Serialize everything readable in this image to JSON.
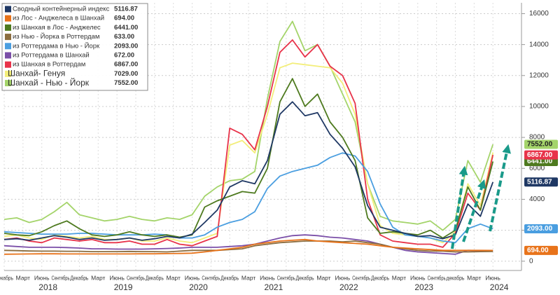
{
  "chart_data": {
    "type": "line",
    "x": [
      "2017-12",
      "2018-02",
      "2018-04",
      "2018-06",
      "2018-08",
      "2018-10",
      "2018-12",
      "2019-02",
      "2019-04",
      "2019-06",
      "2019-08",
      "2019-10",
      "2019-12",
      "2020-02",
      "2020-04",
      "2020-06",
      "2020-08",
      "2020-10",
      "2020-12",
      "2021-02",
      "2021-04",
      "2021-06",
      "2021-08",
      "2021-10",
      "2021-12",
      "2022-02",
      "2022-04",
      "2022-06",
      "2022-08",
      "2022-10",
      "2022-12",
      "2023-02",
      "2023-04",
      "2023-06",
      "2023-08",
      "2023-10",
      "2023-12",
      "2024-02",
      "2024-04",
      "2024-06"
    ],
    "xlim": [
      "2017-12",
      "2024-10"
    ],
    "xticks": [
      {
        "value": "2017-12",
        "label": "Декабрь"
      },
      {
        "value": "2018-03",
        "label": "Март"
      },
      {
        "value": "2018-06",
        "label": "Июнь"
      },
      {
        "value": "2018-09",
        "label": "Сентябрь"
      },
      {
        "value": "2018-12",
        "label": "Декабрь"
      },
      {
        "value": "2019-03",
        "label": "Март"
      },
      {
        "value": "2019-06",
        "label": "Июнь"
      },
      {
        "value": "2019-09",
        "label": "Сентябрь"
      },
      {
        "value": "2019-12",
        "label": "Декабрь"
      },
      {
        "value": "2020-03",
        "label": "Март"
      },
      {
        "value": "2020-06",
        "label": "Июнь"
      },
      {
        "value": "2020-09",
        "label": "Сентябрь"
      },
      {
        "value": "2020-12",
        "label": "Декабрь"
      },
      {
        "value": "2021-03",
        "label": "Март"
      },
      {
        "value": "2021-06",
        "label": "Июнь"
      },
      {
        "value": "2021-09",
        "label": "Сентябрь"
      },
      {
        "value": "2021-12",
        "label": "Декабрь"
      },
      {
        "value": "2022-03",
        "label": "Март"
      },
      {
        "value": "2022-06",
        "label": "Июнь"
      },
      {
        "value": "2022-09",
        "label": "Сентябрь"
      },
      {
        "value": "2022-12",
        "label": "Декабрь"
      },
      {
        "value": "2023-03",
        "label": "Март"
      },
      {
        "value": "2023-06",
        "label": "Июнь"
      },
      {
        "value": "2023-09",
        "label": "Сентябрь"
      },
      {
        "value": "2023-12",
        "label": "декабрь"
      },
      {
        "value": "2024-03",
        "label": "Март"
      },
      {
        "value": "2024-06",
        "label": "Июнь"
      }
    ],
    "year_labels": [
      {
        "value": "2018-07",
        "label": "2018"
      },
      {
        "value": "2019-07",
        "label": "2019"
      },
      {
        "value": "2020-07",
        "label": "2020"
      },
      {
        "value": "2021-07",
        "label": "2021"
      },
      {
        "value": "2022-07",
        "label": "2022"
      },
      {
        "value": "2023-07",
        "label": "2023"
      },
      {
        "value": "2024-07",
        "label": "2024"
      }
    ],
    "ylim": [
      -600,
      16700
    ],
    "yticks": [
      0,
      2000,
      4000,
      6000,
      8000,
      10000,
      12000,
      14000,
      16000
    ],
    "grid": true,
    "legend": "top-left",
    "series": [
      {
        "name": "Сводный контейнерный индекс",
        "color": "#1f3864",
        "last_value": 5116.87,
        "last_value_label": "5116.87",
        "tag": true,
        "values": [
          1400,
          1450,
          1350,
          1500,
          1650,
          1550,
          1400,
          1500,
          1350,
          1400,
          1500,
          1350,
          1450,
          1600,
          1500,
          1750,
          2500,
          3300,
          4800,
          5200,
          5000,
          6500,
          9500,
          10300,
          9400,
          9600,
          8200,
          7300,
          6100,
          3600,
          2200,
          2000,
          1800,
          1600,
          1650,
          1450,
          1700,
          3700,
          2900,
          5117
        ]
      },
      {
        "name": "из Лос - Анджелеса в Шанхай",
        "color": "#e8731a",
        "last_value": 694,
        "last_value_label": "694.00",
        "tag": true,
        "values": [
          450,
          460,
          470,
          480,
          480,
          470,
          470,
          470,
          470,
          470,
          470,
          480,
          480,
          490,
          500,
          520,
          600,
          700,
          800,
          900,
          1100,
          1200,
          1300,
          1350,
          1400,
          1300,
          1250,
          1200,
          1150,
          1100,
          1000,
          900,
          850,
          800,
          750,
          700,
          700,
          700,
          700,
          694
        ]
      },
      {
        "name": "из Шанхая в Лос - Анджелес",
        "color": "#4e7a1f",
        "last_value": 6441,
        "last_value_label": "6441.00",
        "tag": true,
        "values": [
          1800,
          1700,
          1650,
          1900,
          2300,
          2600,
          2100,
          1700,
          1600,
          1700,
          1900,
          1700,
          1600,
          1700,
          1550,
          1700,
          3500,
          3900,
          4200,
          4500,
          4400,
          6000,
          10300,
          11800,
          10000,
          10800,
          9000,
          8000,
          6500,
          2800,
          1800,
          1900,
          1800,
          1700,
          2000,
          1500,
          2000,
          4800,
          3300,
          6441
        ]
      },
      {
        "name": "из Нью - Йорка в Роттердам",
        "color": "#8b6d3f",
        "last_value": 633,
        "last_value_label": "633.00",
        "tag": false,
        "values": [
          700,
          680,
          660,
          650,
          650,
          640,
          640,
          620,
          620,
          620,
          630,
          620,
          620,
          600,
          650,
          700,
          700,
          700,
          750,
          800,
          1000,
          1100,
          1200,
          1250,
          1300,
          1300,
          1300,
          1250,
          1300,
          1200,
          1100,
          900,
          800,
          700,
          650,
          650,
          600,
          600,
          620,
          633
        ]
      },
      {
        "name": "из Роттердама в Нью - Йорк",
        "color": "#4a9ee0",
        "last_value": 2093,
        "last_value_label": "2093.00",
        "tag": true,
        "values": [
          1900,
          1850,
          1800,
          1750,
          1750,
          1750,
          1800,
          1800,
          1750,
          1700,
          1700,
          1700,
          1750,
          1700,
          1500,
          1500,
          1700,
          2200,
          2500,
          2700,
          3200,
          4700,
          5500,
          5800,
          6000,
          6200,
          6700,
          7000,
          6800,
          5800,
          3700,
          2200,
          1700,
          1600,
          1500,
          1300,
          1200,
          2100,
          2400,
          2093
        ]
      },
      {
        "name": "из Роттердама в Шанхай",
        "color": "#7b4fa8",
        "last_value": 672,
        "last_value_label": "672.00",
        "tag": false,
        "values": [
          1000,
          950,
          900,
          900,
          900,
          880,
          850,
          800,
          800,
          780,
          780,
          780,
          800,
          820,
          850,
          900,
          900,
          900,
          950,
          1000,
          1100,
          1300,
          1500,
          1650,
          1700,
          1650,
          1550,
          1500,
          1400,
          1300,
          1100,
          900,
          700,
          600,
          550,
          500,
          450,
          700,
          680,
          672
        ]
      },
      {
        "name": "из Шанхая в Роттердам",
        "color": "#e8334a",
        "last_value": 6867,
        "last_value_label": "6867.00",
        "tag": true,
        "values": [
          1400,
          1500,
          1300,
          1200,
          1500,
          1400,
          1300,
          1400,
          1200,
          1200,
          1300,
          1100,
          1100,
          1400,
          1100,
          1000,
          1300,
          1600,
          8600,
          8200,
          7200,
          10000,
          13500,
          14300,
          13200,
          14000,
          12600,
          12000,
          10200,
          4000,
          1700,
          1300,
          1200,
          1100,
          1100,
          900,
          1800,
          4400,
          3300,
          6867
        ]
      },
      {
        "name": "Шанхай- Генуя",
        "color": "#f3ee7a",
        "last_value": 7029,
        "last_value_label": "7029.00",
        "tag": false,
        "values": [
          1600,
          1700,
          1500,
          1400,
          1700,
          1600,
          1500,
          1600,
          1400,
          1400,
          1500,
          1300,
          1300,
          1500,
          1300,
          1200,
          1500,
          1800,
          7500,
          7800,
          7000,
          9500,
          12500,
          12800,
          12700,
          12600,
          12500,
          11500,
          9500,
          5000,
          2300,
          1800,
          1700,
          1600,
          1500,
          1200,
          1900,
          5000,
          3600,
          7029
        ]
      },
      {
        "name": "Шанхай - Нью - Йорк",
        "color": "#a4d46a",
        "last_value": 7552,
        "last_value_label": "7552.00",
        "tag": true,
        "values": [
          2700,
          2800,
          2500,
          2700,
          3200,
          3800,
          3000,
          2800,
          2600,
          2700,
          2900,
          2700,
          2600,
          2800,
          2700,
          3000,
          4200,
          4800,
          5200,
          5300,
          5800,
          10500,
          14200,
          15500,
          13600,
          14000,
          12600,
          10800,
          9000,
          5000,
          2900,
          2600,
          2500,
          2400,
          2600,
          2000,
          2700,
          6500,
          5100,
          7552
        ]
      }
    ]
  }
}
